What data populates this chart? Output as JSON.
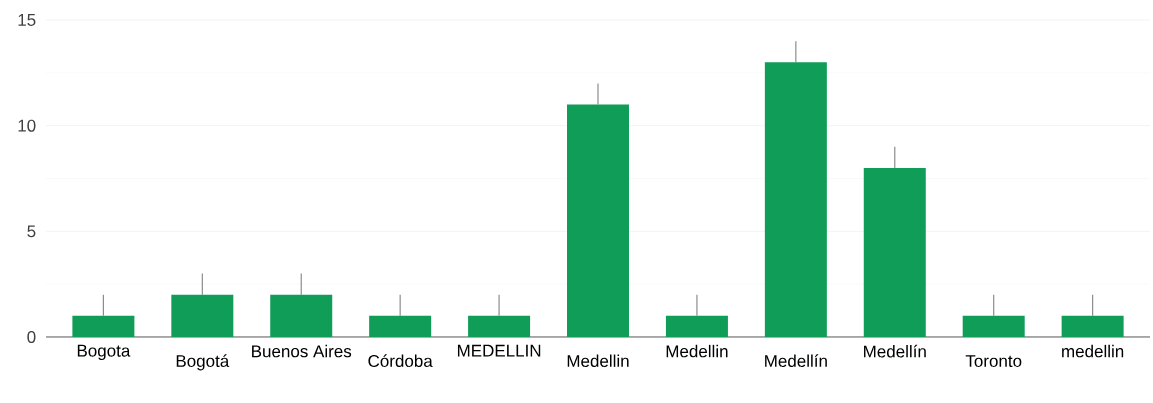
{
  "chart_data": {
    "type": "bar",
    "categories": [
      "Bogota",
      "Bogotá",
      "Buenos Aires",
      "Córdoba",
      "MEDELLIN",
      "Medellin",
      "Medellin",
      "Medellín",
      "Medellín",
      "Toronto",
      "medellin"
    ],
    "values": [
      1,
      2,
      2,
      1,
      1,
      11,
      1,
      13,
      8,
      1,
      1
    ],
    "errors": [
      [
        1,
        2
      ],
      [
        2,
        3
      ],
      [
        2,
        3
      ],
      [
        1,
        2
      ],
      [
        1,
        2
      ],
      [
        11,
        12
      ],
      [
        1,
        2
      ],
      [
        13,
        14
      ],
      [
        8,
        9
      ],
      [
        1,
        2
      ],
      [
        1,
        2
      ]
    ],
    "color": "#0f9d58",
    "ylim": [
      0,
      15
    ],
    "yticks": [
      0,
      5,
      10,
      15
    ],
    "grid": "y"
  }
}
